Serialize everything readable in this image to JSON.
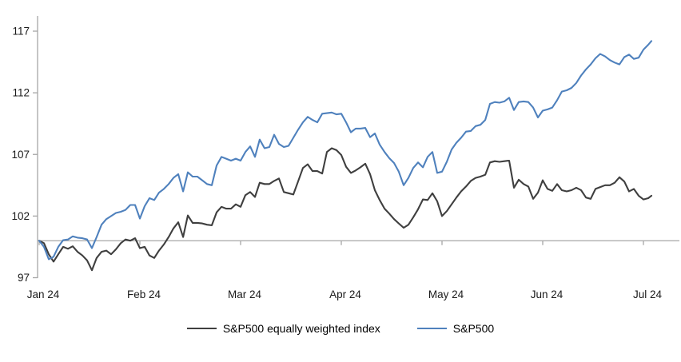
{
  "chart_data": {
    "type": "line",
    "title": "",
    "xlabel": "",
    "ylabel": "",
    "x_axis": {
      "tick_labels": [
        "Jan 24",
        "Feb 24",
        "Mar 24",
        "Apr 24",
        "May 24",
        "Jun 24",
        "Jul 24"
      ],
      "tick_months": [
        0,
        1,
        2,
        3,
        4,
        5,
        6
      ]
    },
    "y_axis": {
      "tick_values": [
        97,
        102,
        107,
        112,
        117
      ],
      "tick_labels": [
        "97",
        "102",
        "107",
        "112",
        "117"
      ],
      "range": [
        97,
        118.2
      ]
    },
    "baseline_value": 100,
    "grid": false,
    "legend_position": "bottom-center",
    "axis_color": "#A6A6A6",
    "baseline_color": "#A6A6A6",
    "text_color": "#1a1a1a",
    "x": [
      0.0,
      0.048,
      0.095,
      0.143,
      0.19,
      0.238,
      0.286,
      0.333,
      0.381,
      0.429,
      0.476,
      0.524,
      0.571,
      0.619,
      0.667,
      0.714,
      0.762,
      0.81,
      0.857,
      0.905,
      0.952,
      1.0,
      1.048,
      1.095,
      1.143,
      1.19,
      1.238,
      1.286,
      1.333,
      1.381,
      1.429,
      1.476,
      1.524,
      1.571,
      1.619,
      1.667,
      1.714,
      1.762,
      1.81,
      1.857,
      1.905,
      1.952,
      2.0,
      2.048,
      2.095,
      2.143,
      2.19,
      2.238,
      2.286,
      2.333,
      2.381,
      2.429,
      2.476,
      2.524,
      2.571,
      2.619,
      2.667,
      2.714,
      2.762,
      2.81,
      2.857,
      2.905,
      2.952,
      3.0,
      3.048,
      3.095,
      3.143,
      3.19,
      3.238,
      3.286,
      3.333,
      3.381,
      3.429,
      3.476,
      3.524,
      3.571,
      3.619,
      3.667,
      3.714,
      3.762,
      3.81,
      3.857,
      3.905,
      3.952,
      4.0,
      4.048,
      4.095,
      4.143,
      4.19,
      4.238,
      4.286,
      4.333,
      4.381,
      4.429,
      4.476,
      4.524,
      4.571,
      4.619,
      4.667,
      4.714,
      4.762,
      4.81,
      4.857,
      4.905,
      4.952,
      5.0,
      5.048,
      5.095,
      5.143,
      5.19,
      5.238,
      5.286,
      5.333,
      5.381,
      5.429,
      5.476,
      5.524,
      5.571,
      5.619,
      5.667,
      5.714,
      5.762,
      5.81,
      5.857,
      5.905,
      5.952,
      6.0,
      6.048,
      6.079
    ],
    "series": [
      {
        "name": "S&P500 equally weighted index",
        "color": "#3F3F3F",
        "values": [
          100.0,
          99.8,
          98.9,
          98.3,
          98.9,
          99.5,
          99.35,
          99.55,
          99.1,
          98.8,
          98.4,
          97.6,
          98.6,
          99.1,
          99.2,
          98.9,
          99.3,
          99.8,
          100.1,
          100.0,
          100.2,
          99.4,
          99.5,
          98.8,
          98.6,
          99.2,
          99.7,
          100.3,
          101.0,
          101.5,
          100.3,
          102.05,
          101.45,
          101.45,
          101.4,
          101.3,
          101.25,
          102.3,
          102.75,
          102.6,
          102.6,
          102.95,
          102.75,
          103.7,
          103.95,
          103.55,
          104.7,
          104.6,
          104.6,
          104.85,
          105.05,
          103.95,
          103.85,
          103.75,
          104.8,
          105.9,
          106.2,
          105.65,
          105.65,
          105.45,
          107.2,
          107.5,
          107.35,
          106.95,
          106.0,
          105.5,
          105.7,
          105.95,
          106.25,
          105.4,
          104.1,
          103.3,
          102.6,
          102.2,
          101.75,
          101.4,
          101.05,
          101.3,
          101.9,
          102.55,
          103.35,
          103.3,
          103.85,
          103.2,
          102.0,
          102.4,
          102.95,
          103.5,
          104.0,
          104.4,
          104.85,
          105.1,
          105.2,
          105.35,
          106.35,
          106.45,
          106.4,
          106.45,
          106.5,
          104.3,
          104.95,
          104.6,
          104.4,
          103.4,
          103.9,
          104.9,
          104.2,
          104.05,
          104.6,
          104.1,
          104.0,
          104.1,
          104.3,
          104.1,
          103.5,
          103.4,
          104.2,
          104.35,
          104.5,
          104.5,
          104.7,
          105.15,
          104.8,
          104.0,
          104.2,
          103.65,
          103.35,
          103.45,
          103.65
        ]
      },
      {
        "name": "S&P500",
        "color": "#4F81BD",
        "values": [
          100.0,
          99.5,
          98.5,
          98.7,
          99.5,
          100.05,
          100.1,
          100.35,
          100.25,
          100.2,
          100.1,
          99.4,
          100.3,
          101.3,
          101.75,
          102.0,
          102.25,
          102.35,
          102.5,
          102.9,
          102.9,
          101.8,
          102.8,
          103.45,
          103.3,
          103.9,
          104.2,
          104.6,
          105.1,
          105.4,
          104.0,
          105.55,
          105.2,
          105.2,
          104.9,
          104.6,
          104.5,
          106.1,
          106.8,
          106.65,
          106.5,
          106.65,
          106.5,
          107.2,
          107.65,
          106.8,
          108.2,
          107.5,
          107.6,
          108.6,
          107.85,
          107.6,
          107.7,
          108.35,
          109.0,
          109.6,
          110.05,
          109.8,
          109.6,
          110.3,
          110.35,
          110.4,
          110.25,
          110.3,
          109.6,
          108.8,
          109.1,
          109.1,
          109.15,
          108.4,
          108.7,
          107.8,
          107.2,
          106.7,
          106.3,
          105.6,
          104.5,
          105.1,
          105.9,
          106.35,
          105.95,
          106.8,
          107.2,
          105.5,
          105.6,
          106.4,
          107.4,
          107.95,
          108.35,
          108.85,
          108.9,
          109.3,
          109.4,
          109.8,
          111.1,
          111.25,
          111.2,
          111.3,
          111.6,
          110.6,
          111.25,
          111.3,
          111.25,
          110.8,
          110.0,
          110.55,
          110.65,
          110.8,
          111.4,
          112.1,
          112.2,
          112.4,
          112.8,
          113.4,
          113.9,
          114.3,
          114.8,
          115.15,
          114.95,
          114.65,
          114.45,
          114.3,
          114.9,
          115.1,
          114.75,
          114.85,
          115.5,
          115.9,
          116.2
        ]
      }
    ]
  },
  "legend": {
    "item1_label": "S&P500 equally weighted index",
    "item2_label": "S&P500"
  }
}
